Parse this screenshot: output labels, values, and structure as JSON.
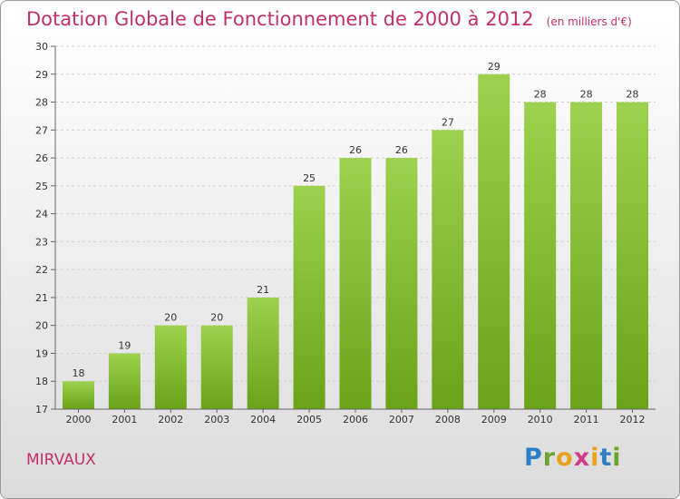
{
  "title": "Dotation Globale de Fonctionnement de 2000 à 2012",
  "subtitle": "(en milliers d'€)",
  "town": "MIRVAUX",
  "logo": {
    "text": "Proxiti",
    "letters": [
      "P",
      "r",
      "o",
      "x",
      "i",
      "t",
      "i"
    ],
    "colors": [
      "#2f7fc4",
      "#6aa62e",
      "#e8a21b",
      "#d33c8b",
      "#e8a21b",
      "#2f7fc4",
      "#6aa62e"
    ]
  },
  "colors": {
    "title": "#c0306a",
    "bar_light": "#9dd14f",
    "bar_dark": "#69a319"
  },
  "chart_data": {
    "type": "bar",
    "categories": [
      "2000",
      "2001",
      "2002",
      "2003",
      "2004",
      "2005",
      "2006",
      "2007",
      "2008",
      "2009",
      "2010",
      "2011",
      "2012"
    ],
    "values": [
      18,
      19,
      20,
      20,
      21,
      25,
      26,
      26,
      27,
      29,
      28,
      28,
      28
    ],
    "ylim": [
      17,
      30
    ],
    "yticks": [
      17,
      18,
      19,
      20,
      21,
      22,
      23,
      24,
      25,
      26,
      27,
      28,
      29,
      30
    ],
    "grid": true,
    "title": "Dotation Globale de Fonctionnement de 2000 à 2012",
    "ylabel": "(en milliers d'€)",
    "xlabel": ""
  }
}
